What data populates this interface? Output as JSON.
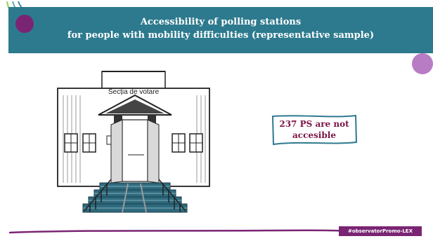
{
  "header": {
    "title_line1": "Accessibility of polling stations",
    "title_line2": "for people with mobility difficulties (representative sample)"
  },
  "illustration": {
    "sign_text": "Secția de votare"
  },
  "callout": {
    "line1": "237 PS are not",
    "line2": "accesible"
  },
  "footer": {
    "tag": "#observatorPromo-LEX"
  },
  "colors": {
    "header_bg": "#2d7a8e",
    "accent_magenta": "#7a2573",
    "accent_lilac": "#b87cc4",
    "callout_text": "#7a1444",
    "green_arc": "#8fd14f"
  }
}
